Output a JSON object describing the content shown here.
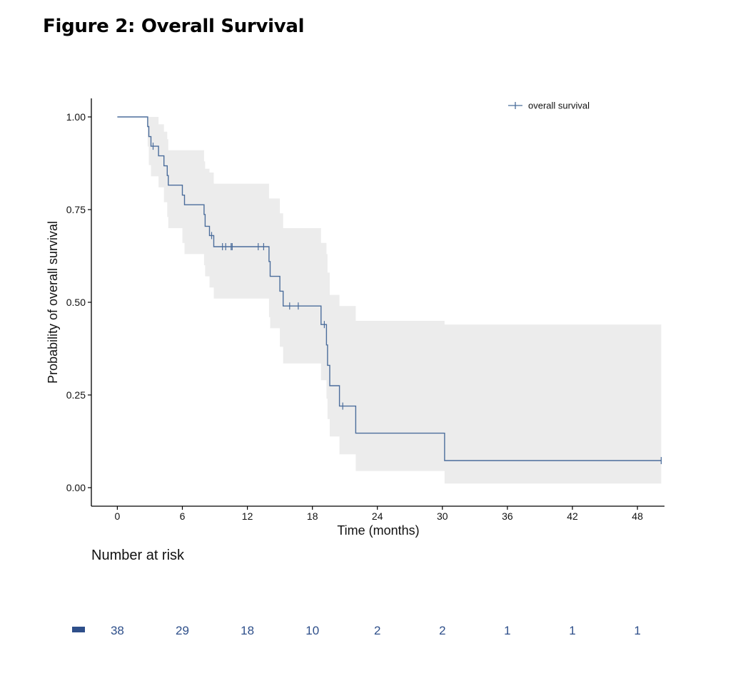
{
  "figure": {
    "title": "Figure 2: Overall Survival"
  },
  "colors": {
    "curve": "#4b6d9b",
    "band": "#ececec",
    "risk": "#2e4f8a"
  },
  "chart_data": {
    "type": "line",
    "subtype": "kaplan-meier",
    "xlabel": "Time (months)",
    "ylabel": "Probability of overall survival",
    "xlim": [
      -2.4,
      50.5
    ],
    "ylim": [
      -0.05,
      1.05
    ],
    "x_ticks": [
      0,
      6,
      12,
      18,
      24,
      30,
      36,
      42,
      48
    ],
    "x_tick_labels": [
      "0",
      "6",
      "12",
      "18",
      "24",
      "30",
      "36",
      "42",
      "48"
    ],
    "y_ticks": [
      0,
      0.25,
      0.5,
      0.75,
      1.0
    ],
    "y_tick_labels": [
      "0.00",
      "0.25",
      "0.50",
      "0.75",
      "1.00"
    ],
    "grid": false,
    "legend": {
      "position": "top-right",
      "entries": [
        "overall survival"
      ]
    },
    "series": [
      {
        "name": "overall survival",
        "steps": [
          [
            0,
            1.0
          ],
          [
            2.8,
            0.974
          ],
          [
            2.9,
            0.947
          ],
          [
            3.1,
            0.921
          ],
          [
            3.8,
            0.895
          ],
          [
            4.3,
            0.868
          ],
          [
            4.6,
            0.842
          ],
          [
            4.7,
            0.816
          ],
          [
            6.0,
            0.789
          ],
          [
            6.2,
            0.763
          ],
          [
            8.0,
            0.737
          ],
          [
            8.1,
            0.705
          ],
          [
            8.5,
            0.68
          ],
          [
            8.9,
            0.65
          ],
          [
            14.0,
            0.61
          ],
          [
            14.1,
            0.57
          ],
          [
            15.0,
            0.53
          ],
          [
            15.3,
            0.49
          ],
          [
            18.8,
            0.44
          ],
          [
            19.3,
            0.385
          ],
          [
            19.4,
            0.33
          ],
          [
            19.6,
            0.275
          ],
          [
            20.5,
            0.22
          ],
          [
            22.0,
            0.147
          ],
          [
            30.2,
            0.073
          ],
          [
            50.2,
            0.073
          ]
        ],
        "censored": [
          [
            3.3,
            0.921
          ],
          [
            8.7,
            0.68
          ],
          [
            9.7,
            0.65
          ],
          [
            10.0,
            0.65
          ],
          [
            10.5,
            0.65
          ],
          [
            10.6,
            0.65
          ],
          [
            13.0,
            0.65
          ],
          [
            13.5,
            0.65
          ],
          [
            15.9,
            0.49
          ],
          [
            16.7,
            0.49
          ],
          [
            19.1,
            0.44
          ],
          [
            20.8,
            0.22
          ],
          [
            50.2,
            0.073
          ]
        ],
        "ci_band": [
          [
            0,
            1.0,
            1.0
          ],
          [
            2.8,
            0.92,
            1.0
          ],
          [
            2.9,
            0.87,
            1.0
          ],
          [
            3.1,
            0.84,
            1.0
          ],
          [
            3.8,
            0.81,
            0.98
          ],
          [
            4.3,
            0.77,
            0.96
          ],
          [
            4.6,
            0.73,
            0.94
          ],
          [
            4.7,
            0.7,
            0.91
          ],
          [
            6.0,
            0.66,
            0.91
          ],
          [
            6.2,
            0.63,
            0.91
          ],
          [
            8.0,
            0.6,
            0.88
          ],
          [
            8.1,
            0.57,
            0.86
          ],
          [
            8.5,
            0.54,
            0.85
          ],
          [
            8.9,
            0.51,
            0.82
          ],
          [
            14.0,
            0.46,
            0.78
          ],
          [
            14.1,
            0.43,
            0.78
          ],
          [
            15.0,
            0.38,
            0.74
          ],
          [
            15.3,
            0.335,
            0.7
          ],
          [
            18.8,
            0.29,
            0.66
          ],
          [
            19.3,
            0.24,
            0.63
          ],
          [
            19.4,
            0.185,
            0.58
          ],
          [
            19.6,
            0.138,
            0.52
          ],
          [
            20.5,
            0.09,
            0.49
          ],
          [
            22.0,
            0.045,
            0.45
          ],
          [
            30.2,
            0.011,
            0.44
          ],
          [
            50.2,
            0.011,
            0.44
          ]
        ]
      }
    ]
  },
  "risk_table": {
    "title": "Number at risk",
    "times": [
      0,
      6,
      12,
      18,
      24,
      30,
      36,
      42,
      48
    ],
    "counts": [
      "38",
      "29",
      "18",
      "10",
      "2",
      "2",
      "1",
      "1",
      "1"
    ]
  }
}
